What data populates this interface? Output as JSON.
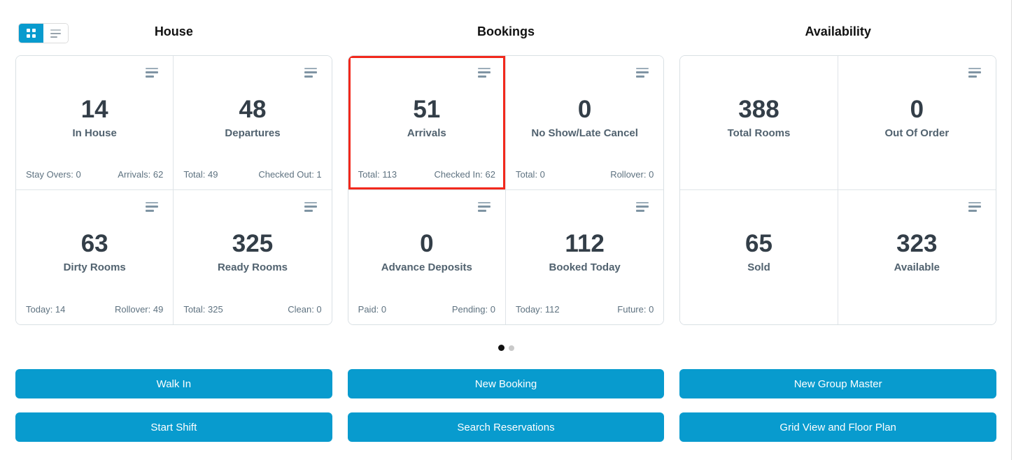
{
  "accent_color": "#089bce",
  "highlight_color": "#f2281c",
  "view_toggle": {
    "options": [
      {
        "name": "grid-view",
        "active": true
      },
      {
        "name": "list-view",
        "active": false
      }
    ]
  },
  "sections": [
    {
      "title": "House",
      "cards": [
        {
          "value": "14",
          "label": "In House",
          "foot_left": "Stay Overs: 0",
          "foot_right": "Arrivals: 62",
          "icon": true,
          "highlight": false
        },
        {
          "value": "48",
          "label": "Departures",
          "foot_left": "Total: 49",
          "foot_right": "Checked Out: 1",
          "icon": true,
          "highlight": false
        },
        {
          "value": "63",
          "label": "Dirty Rooms",
          "foot_left": "Today: 14",
          "foot_right": "Rollover: 49",
          "icon": true,
          "highlight": false
        },
        {
          "value": "325",
          "label": "Ready Rooms",
          "foot_left": "Total: 325",
          "foot_right": "Clean: 0",
          "icon": true,
          "highlight": false
        }
      ]
    },
    {
      "title": "Bookings",
      "cards": [
        {
          "value": "51",
          "label": "Arrivals",
          "foot_left": "Total: 113",
          "foot_right": "Checked In: 62",
          "icon": true,
          "highlight": true
        },
        {
          "value": "0",
          "label": "No Show/Late Cancel",
          "foot_left": "Total: 0",
          "foot_right": "Rollover: 0",
          "icon": true,
          "highlight": false
        },
        {
          "value": "0",
          "label": "Advance Deposits",
          "foot_left": "Paid: 0",
          "foot_right": "Pending: 0",
          "icon": true,
          "highlight": false
        },
        {
          "value": "112",
          "label": "Booked Today",
          "foot_left": "Today: 112",
          "foot_right": "Future: 0",
          "icon": true,
          "highlight": false
        }
      ]
    },
    {
      "title": "Availability",
      "cards": [
        {
          "value": "388",
          "label": "Total Rooms",
          "foot_left": "",
          "foot_right": "",
          "icon": false,
          "highlight": false
        },
        {
          "value": "0",
          "label": "Out Of Order",
          "foot_left": "",
          "foot_right": "",
          "icon": true,
          "highlight": false
        },
        {
          "value": "65",
          "label": "Sold",
          "foot_left": "",
          "foot_right": "",
          "icon": false,
          "highlight": false
        },
        {
          "value": "323",
          "label": "Available",
          "foot_left": "",
          "foot_right": "",
          "icon": true,
          "highlight": false
        }
      ]
    }
  ],
  "pagination": {
    "dot_count": 2,
    "active_index": 0
  },
  "action_buttons": [
    "Walk In",
    "New Booking",
    "New Group Master",
    "Start Shift",
    "Search Reservations",
    "Grid View and Floor Plan"
  ]
}
